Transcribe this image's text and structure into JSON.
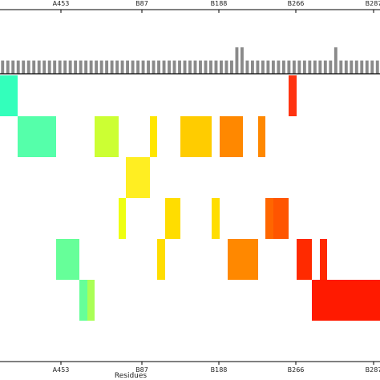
{
  "chart_data": [
    {
      "type": "bar",
      "name": "contact-frequency-bars",
      "bar_color": "#8a8a8a",
      "values": [
        1,
        1,
        1,
        1,
        1,
        1,
        1,
        1,
        1,
        1,
        1,
        1,
        1,
        1,
        1,
        1,
        1,
        1,
        1,
        1,
        1,
        1,
        1,
        1,
        1,
        1,
        1,
        1,
        1,
        1,
        1,
        1,
        1,
        1,
        1,
        1,
        1,
        1,
        1,
        1,
        1,
        1,
        1,
        1,
        1,
        2,
        2,
        1,
        1,
        1,
        1,
        1,
        1,
        1,
        1,
        1,
        1,
        1,
        1,
        1,
        1,
        1,
        1,
        1,
        2,
        1,
        1,
        1,
        1,
        1,
        1,
        1,
        1
      ],
      "ylim": [
        0,
        3
      ]
    },
    {
      "type": "heatmap",
      "name": "residue-contact-map",
      "xlabel": "Residues",
      "x_range": [
        0,
        474
      ],
      "x_ticks": [
        {
          "label": "A453",
          "x": 76
        },
        {
          "label": "B87",
          "x": 177
        },
        {
          "label": "B188",
          "x": 273
        },
        {
          "label": "B266",
          "x": 369
        },
        {
          "label": "B287",
          "x": 466
        }
      ],
      "rows": 7,
      "cells": [
        {
          "row": 0,
          "x0": 0,
          "x1": 22,
          "color": "#33ffbb"
        },
        {
          "row": 0,
          "x0": 360,
          "x1": 370,
          "color": "#ff3311"
        },
        {
          "row": 1,
          "x0": 22,
          "x1": 70,
          "color": "#55ffaa"
        },
        {
          "row": 1,
          "x0": 118,
          "x1": 148,
          "color": "#ccff33"
        },
        {
          "row": 1,
          "x0": 187,
          "x1": 196,
          "color": "#ffe600"
        },
        {
          "row": 1,
          "x0": 225,
          "x1": 264,
          "color": "#ffcc00"
        },
        {
          "row": 1,
          "x0": 274,
          "x1": 303,
          "color": "#ff8800"
        },
        {
          "row": 1,
          "x0": 322,
          "x1": 331,
          "color": "#ff8800"
        },
        {
          "row": 2,
          "x0": 157,
          "x1": 187,
          "color": "#ffee22"
        },
        {
          "row": 3,
          "x0": 148,
          "x1": 157,
          "color": "#eeff11"
        },
        {
          "row": 3,
          "x0": 206,
          "x1": 225,
          "color": "#ffdd00"
        },
        {
          "row": 3,
          "x0": 264,
          "x1": 274,
          "color": "#ffdd00"
        },
        {
          "row": 3,
          "x0": 331,
          "x1": 341,
          "color": "#ff6600"
        },
        {
          "row": 3,
          "x0": 341,
          "x1": 360,
          "color": "#ff5500"
        },
        {
          "row": 4,
          "x0": 70,
          "x1": 99,
          "color": "#66ff99"
        },
        {
          "row": 4,
          "x0": 196,
          "x1": 206,
          "color": "#ffdd00"
        },
        {
          "row": 4,
          "x0": 284,
          "x1": 322,
          "color": "#ff8800"
        },
        {
          "row": 4,
          "x0": 370,
          "x1": 389,
          "color": "#ff2a00"
        },
        {
          "row": 4,
          "x0": 399,
          "x1": 408,
          "color": "#ff2a00"
        },
        {
          "row": 5,
          "x0": 99,
          "x1": 109,
          "color": "#66ff99"
        },
        {
          "row": 5,
          "x0": 109,
          "x1": 118,
          "color": "#aaff55"
        },
        {
          "row": 5,
          "x0": 389,
          "x1": 474,
          "color": "#ff1a00"
        }
      ]
    }
  ]
}
